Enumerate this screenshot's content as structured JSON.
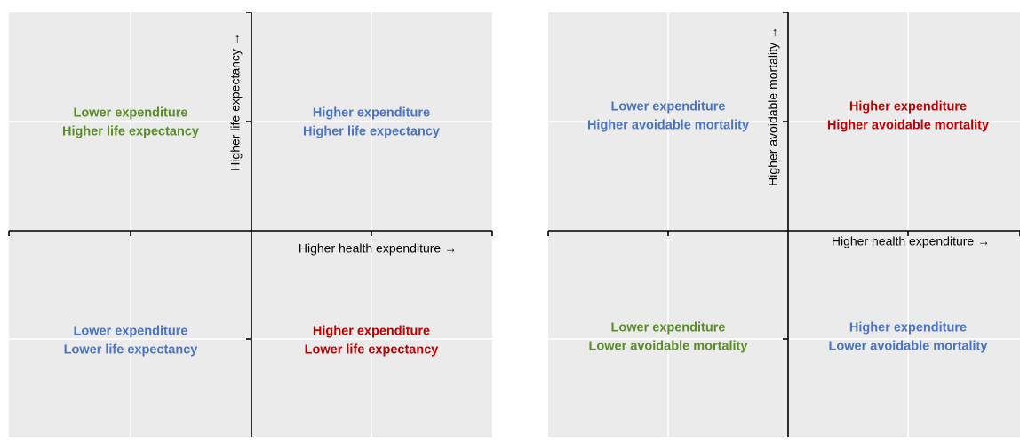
{
  "panels": [
    {
      "x_axis_label": "Higher health expenditure →",
      "y_axis_label": "Higher life expectancy →",
      "quadrants": [
        {
          "lines": [
            "Lower expenditure",
            "Higher life expectancy"
          ],
          "color": "#5b8c2a"
        },
        {
          "lines": [
            "Higher expenditure",
            "Higher life expectancy"
          ],
          "color": "#4a74c4"
        },
        {
          "lines": [
            "Lower expenditure",
            "Lower life expectancy"
          ],
          "color": "#4a74c4"
        },
        {
          "lines": [
            "Higher expenditure",
            "Lower life expectancy"
          ],
          "color": "#c00000"
        }
      ]
    },
    {
      "x_axis_label": "Higher health expenditure →",
      "y_axis_label": "Higher avoidable mortality →",
      "quadrants": [
        {
          "lines": [
            "Lower expenditure",
            "Higher avoidable mortality"
          ],
          "color": "#4a74c4"
        },
        {
          "lines": [
            "Higher expenditure",
            "Higher avoidable mortality"
          ],
          "color": "#c00000"
        },
        {
          "lines": [
            "Lower expenditure",
            "Lower avoidable mortality"
          ],
          "color": "#5b8c2a"
        },
        {
          "lines": [
            "Higher expenditure",
            "Lower avoidable mortality"
          ],
          "color": "#4a74c4"
        }
      ]
    }
  ]
}
